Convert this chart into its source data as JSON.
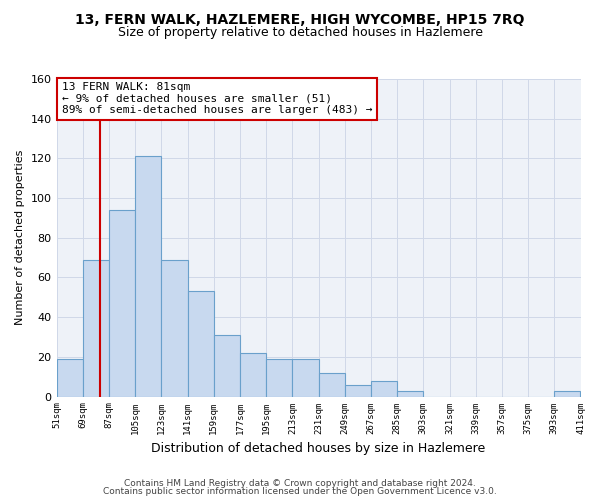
{
  "title": "13, FERN WALK, HAZLEMERE, HIGH WYCOMBE, HP15 7RQ",
  "subtitle": "Size of property relative to detached houses in Hazlemere",
  "xlabel": "Distribution of detached houses by size in Hazlemere",
  "ylabel": "Number of detached properties",
  "bar_edges": [
    51,
    69,
    87,
    105,
    123,
    141,
    159,
    177,
    195,
    213,
    231,
    249,
    267,
    285,
    303,
    321,
    339,
    357,
    375,
    393,
    411
  ],
  "bar_heights": [
    19,
    69,
    94,
    121,
    69,
    53,
    31,
    22,
    19,
    19,
    12,
    6,
    8,
    3,
    0,
    0,
    0,
    0,
    0,
    3
  ],
  "bar_color": "#c8d9ef",
  "bar_edge_color": "#6aa0cb",
  "property_line_x": 81,
  "property_line_color": "#cc0000",
  "annotation_line1": "13 FERN WALK: 81sqm",
  "annotation_line2": "← 9% of detached houses are smaller (51)",
  "annotation_line3": "89% of semi-detached houses are larger (483) →",
  "ylim": [
    0,
    160
  ],
  "yticks": [
    0,
    20,
    40,
    60,
    80,
    100,
    120,
    140,
    160
  ],
  "tick_labels": [
    "51sqm",
    "69sqm",
    "87sqm",
    "105sqm",
    "123sqm",
    "141sqm",
    "159sqm",
    "177sqm",
    "195sqm",
    "213sqm",
    "231sqm",
    "249sqm",
    "267sqm",
    "285sqm",
    "303sqm",
    "321sqm",
    "339sqm",
    "357sqm",
    "375sqm",
    "393sqm",
    "411sqm"
  ],
  "footer1": "Contains HM Land Registry data © Crown copyright and database right 2024.",
  "footer2": "Contains public sector information licensed under the Open Government Licence v3.0.",
  "background_color": "#ffffff",
  "axes_bg_color": "#eef2f8",
  "grid_color": "#d0d8e8"
}
